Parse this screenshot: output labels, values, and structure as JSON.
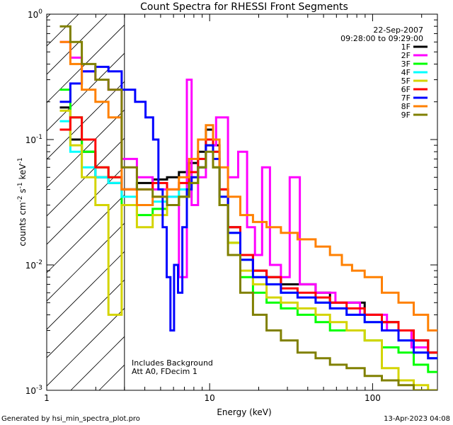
{
  "chart_data": {
    "type": "line",
    "title": "Count Spectra for RHESSI Front Segments",
    "xlabel": "Energy (keV)",
    "ylabel": "counts cm^-2 s^-1 keV^-1",
    "ylabel_parts": {
      "a": "counts cm",
      "b": "-2",
      "c": " s",
      "d": "-1",
      "e": " keV",
      "f": "-1"
    },
    "x_scale": "log",
    "y_scale": "log",
    "xlim": [
      1,
      250
    ],
    "ylim": [
      0.001,
      1
    ],
    "x_ticks": [
      {
        "value": 1,
        "label": "1"
      },
      {
        "value": 10,
        "label": "10"
      },
      {
        "value": 100,
        "label": "100"
      }
    ],
    "y_ticks": [
      {
        "value": 1,
        "base": "10",
        "exp": "0"
      },
      {
        "value": 0.1,
        "base": "10",
        "exp": "-1"
      },
      {
        "value": 0.01,
        "base": "10",
        "exp": "-2"
      },
      {
        "value": 0.001,
        "base": "10",
        "exp": "-3"
      }
    ],
    "date": "22-Sep-2007",
    "time_range": "09:28:00 to 09:29:00",
    "annotation_lines": [
      "Includes Background",
      "Att A0, FDecim 1"
    ],
    "hatched_region": {
      "x_start": 1,
      "x_end": 3
    },
    "series": [
      {
        "name": "1F",
        "color": "#000000",
        "points": [
          [
            1.3,
            0.18
          ],
          [
            1.5,
            0.1
          ],
          [
            1.8,
            0.08
          ],
          [
            2.2,
            0.05
          ],
          [
            2.6,
            0.045
          ],
          [
            3.2,
            0.04
          ],
          [
            4.0,
            0.045
          ],
          [
            5.0,
            0.048
          ],
          [
            6.0,
            0.05
          ],
          [
            7.0,
            0.055
          ],
          [
            8.0,
            0.065
          ],
          [
            9.0,
            0.08
          ],
          [
            10.0,
            0.12
          ],
          [
            11.0,
            0.09
          ],
          [
            12.0,
            0.04
          ],
          [
            14.0,
            0.02
          ],
          [
            17.0,
            0.012
          ],
          [
            20.0,
            0.009
          ],
          [
            25.0,
            0.008
          ],
          [
            30.0,
            0.007
          ],
          [
            40.0,
            0.007
          ],
          [
            50.0,
            0.006
          ],
          [
            60.0,
            0.005
          ],
          [
            80.0,
            0.005
          ],
          [
            100.0,
            0.004
          ],
          [
            130.0,
            0.0035
          ],
          [
            160.0,
            0.003
          ],
          [
            200.0,
            0.0025
          ],
          [
            240.0,
            0.002
          ]
        ]
      },
      {
        "name": "2F",
        "color": "#ff00ff",
        "points": [
          [
            1.3,
            0.6
          ],
          [
            1.5,
            0.45
          ],
          [
            1.8,
            0.35
          ],
          [
            2.2,
            0.3
          ],
          [
            2.6,
            0.25
          ],
          [
            3.2,
            0.07
          ],
          [
            4.0,
            0.05
          ],
          [
            5.0,
            0.04
          ],
          [
            6.0,
            0.035
          ],
          [
            7.0,
            0.008
          ],
          [
            7.5,
            0.3
          ],
          [
            8.0,
            0.03
          ],
          [
            9.0,
            0.05
          ],
          [
            10.0,
            0.09
          ],
          [
            12.0,
            0.15
          ],
          [
            14.0,
            0.05
          ],
          [
            16.0,
            0.08
          ],
          [
            18.0,
            0.02
          ],
          [
            20.0,
            0.012
          ],
          [
            22.0,
            0.06
          ],
          [
            25.0,
            0.01
          ],
          [
            30.0,
            0.008
          ],
          [
            32.0,
            0.05
          ],
          [
            40.0,
            0.007
          ],
          [
            50.0,
            0.006
          ],
          [
            70.0,
            0.005
          ],
          [
            100.0,
            0.004
          ],
          [
            150.0,
            0.003
          ],
          [
            200.0,
            0.0022
          ],
          [
            240.0,
            0.0018
          ]
        ]
      },
      {
        "name": "3F",
        "color": "#00ff00",
        "points": [
          [
            1.3,
            0.25
          ],
          [
            1.5,
            0.15
          ],
          [
            1.8,
            0.08
          ],
          [
            2.2,
            0.06
          ],
          [
            2.6,
            0.05
          ],
          [
            3.2,
            0.03
          ],
          [
            4.0,
            0.025
          ],
          [
            5.0,
            0.028
          ],
          [
            6.0,
            0.03
          ],
          [
            7.0,
            0.035
          ],
          [
            8.0,
            0.045
          ],
          [
            9.0,
            0.06
          ],
          [
            10.0,
            0.09
          ],
          [
            11.0,
            0.06
          ],
          [
            12.0,
            0.03
          ],
          [
            14.0,
            0.015
          ],
          [
            17.0,
            0.008
          ],
          [
            20.0,
            0.006
          ],
          [
            25.0,
            0.005
          ],
          [
            30.0,
            0.0045
          ],
          [
            40.0,
            0.004
          ],
          [
            50.0,
            0.0035
          ],
          [
            60.0,
            0.003
          ],
          [
            80.0,
            0.003
          ],
          [
            100.0,
            0.0025
          ],
          [
            130.0,
            0.0022
          ],
          [
            160.0,
            0.002
          ],
          [
            200.0,
            0.0016
          ],
          [
            240.0,
            0.0014
          ]
        ]
      },
      {
        "name": "4F",
        "color": "#00ffff",
        "points": [
          [
            1.3,
            0.14
          ],
          [
            1.5,
            0.08
          ],
          [
            1.8,
            0.06
          ],
          [
            2.2,
            0.05
          ],
          [
            2.6,
            0.045
          ],
          [
            3.2,
            0.035
          ],
          [
            4.0,
            0.03
          ],
          [
            5.0,
            0.032
          ],
          [
            6.0,
            0.035
          ],
          [
            7.0,
            0.04
          ],
          [
            8.0,
            0.05
          ],
          [
            9.0,
            0.07
          ],
          [
            10.0,
            0.1
          ],
          [
            11.0,
            0.08
          ],
          [
            12.0,
            0.035
          ],
          [
            14.0,
            0.018
          ],
          [
            17.0,
            0.011
          ],
          [
            20.0,
            0.008
          ],
          [
            25.0,
            0.007
          ],
          [
            30.0,
            0.006
          ],
          [
            40.0,
            0.0055
          ],
          [
            50.0,
            0.005
          ],
          [
            60.0,
            0.0045
          ],
          [
            80.0,
            0.004
          ],
          [
            100.0,
            0.0035
          ],
          [
            130.0,
            0.003
          ],
          [
            160.0,
            0.0025
          ],
          [
            200.0,
            0.002
          ],
          [
            240.0,
            0.0018
          ]
        ]
      },
      {
        "name": "5F",
        "color": "#d4d400",
        "points": [
          [
            1.3,
            0.17
          ],
          [
            1.5,
            0.09
          ],
          [
            1.8,
            0.05
          ],
          [
            2.2,
            0.03
          ],
          [
            2.6,
            0.004
          ],
          [
            3.2,
            0.03
          ],
          [
            4.0,
            0.02
          ],
          [
            5.0,
            0.025
          ],
          [
            6.0,
            0.03
          ],
          [
            7.0,
            0.035
          ],
          [
            8.0,
            0.045
          ],
          [
            9.0,
            0.06
          ],
          [
            10.0,
            0.09
          ],
          [
            11.0,
            0.06
          ],
          [
            12.0,
            0.03
          ],
          [
            14.0,
            0.015
          ],
          [
            17.0,
            0.009
          ],
          [
            20.0,
            0.007
          ],
          [
            25.0,
            0.0055
          ],
          [
            30.0,
            0.005
          ],
          [
            40.0,
            0.0045
          ],
          [
            50.0,
            0.004
          ],
          [
            60.0,
            0.0035
          ],
          [
            80.0,
            0.003
          ],
          [
            100.0,
            0.0025
          ],
          [
            130.0,
            0.0015
          ],
          [
            160.0,
            0.0012
          ],
          [
            200.0,
            0.0011
          ],
          [
            240.0,
            0.001
          ]
        ]
      },
      {
        "name": "6F",
        "color": "#ff0000",
        "points": [
          [
            1.3,
            0.12
          ],
          [
            1.5,
            0.15
          ],
          [
            1.8,
            0.1
          ],
          [
            2.2,
            0.06
          ],
          [
            2.6,
            0.05
          ],
          [
            3.2,
            0.04
          ],
          [
            4.0,
            0.04
          ],
          [
            5.0,
            0.045
          ],
          [
            6.0,
            0.04
          ],
          [
            7.0,
            0.045
          ],
          [
            8.0,
            0.055
          ],
          [
            9.0,
            0.07
          ],
          [
            10.0,
            0.1
          ],
          [
            11.0,
            0.08
          ],
          [
            12.0,
            0.04
          ],
          [
            14.0,
            0.02
          ],
          [
            17.0,
            0.012
          ],
          [
            20.0,
            0.009
          ],
          [
            25.0,
            0.008
          ],
          [
            30.0,
            0.0065
          ],
          [
            40.0,
            0.006
          ],
          [
            50.0,
            0.0055
          ],
          [
            60.0,
            0.005
          ],
          [
            80.0,
            0.0045
          ],
          [
            100.0,
            0.004
          ],
          [
            130.0,
            0.0035
          ],
          [
            160.0,
            0.003
          ],
          [
            200.0,
            0.0025
          ],
          [
            240.0,
            0.002
          ]
        ]
      },
      {
        "name": "7F",
        "color": "#0000ff",
        "points": [
          [
            1.3,
            0.2
          ],
          [
            1.5,
            0.28
          ],
          [
            1.8,
            0.35
          ],
          [
            2.2,
            0.38
          ],
          [
            2.6,
            0.35
          ],
          [
            3.2,
            0.25
          ],
          [
            3.8,
            0.2
          ],
          [
            4.3,
            0.15
          ],
          [
            4.7,
            0.1
          ],
          [
            5.0,
            0.04
          ],
          [
            5.3,
            0.02
          ],
          [
            5.6,
            0.008
          ],
          [
            5.9,
            0.003
          ],
          [
            6.2,
            0.01
          ],
          [
            6.6,
            0.006
          ],
          [
            7.0,
            0.02
          ],
          [
            7.5,
            0.04
          ],
          [
            8.0,
            0.05
          ],
          [
            9.0,
            0.06
          ],
          [
            10.0,
            0.09
          ],
          [
            11.0,
            0.07
          ],
          [
            12.0,
            0.035
          ],
          [
            14.0,
            0.018
          ],
          [
            17.0,
            0.011
          ],
          [
            20.0,
            0.008
          ],
          [
            25.0,
            0.007
          ],
          [
            30.0,
            0.006
          ],
          [
            40.0,
            0.0055
          ],
          [
            50.0,
            0.005
          ],
          [
            60.0,
            0.0045
          ],
          [
            80.0,
            0.004
          ],
          [
            100.0,
            0.0035
          ],
          [
            130.0,
            0.003
          ],
          [
            160.0,
            0.0025
          ],
          [
            200.0,
            0.002
          ],
          [
            240.0,
            0.0018
          ]
        ]
      },
      {
        "name": "8F",
        "color": "#ff8000",
        "points": [
          [
            1.3,
            0.6
          ],
          [
            1.5,
            0.4
          ],
          [
            1.8,
            0.25
          ],
          [
            2.2,
            0.2
          ],
          [
            2.6,
            0.15
          ],
          [
            3.2,
            0.04
          ],
          [
            4.0,
            0.03
          ],
          [
            5.0,
            0.035
          ],
          [
            6.0,
            0.04
          ],
          [
            7.0,
            0.05
          ],
          [
            8.0,
            0.07
          ],
          [
            9.0,
            0.1
          ],
          [
            10.0,
            0.13
          ],
          [
            11.0,
            0.1
          ],
          [
            12.0,
            0.06
          ],
          [
            14.0,
            0.035
          ],
          [
            17.0,
            0.025
          ],
          [
            20.0,
            0.022
          ],
          [
            25.0,
            0.02
          ],
          [
            30.0,
            0.018
          ],
          [
            40.0,
            0.016
          ],
          [
            50.0,
            0.014
          ],
          [
            60.0,
            0.012
          ],
          [
            70.0,
            0.01
          ],
          [
            80.0,
            0.009
          ],
          [
            100.0,
            0.008
          ],
          [
            130.0,
            0.006
          ],
          [
            160.0,
            0.005
          ],
          [
            200.0,
            0.004
          ],
          [
            240.0,
            0.003
          ]
        ]
      },
      {
        "name": "9F",
        "color": "#808000",
        "points": [
          [
            1.3,
            0.8
          ],
          [
            1.5,
            0.6
          ],
          [
            1.8,
            0.4
          ],
          [
            2.2,
            0.3
          ],
          [
            2.6,
            0.25
          ],
          [
            3.2,
            0.06
          ],
          [
            4.0,
            0.04
          ],
          [
            5.0,
            0.035
          ],
          [
            6.0,
            0.03
          ],
          [
            7.0,
            0.035
          ],
          [
            8.0,
            0.045
          ],
          [
            9.0,
            0.06
          ],
          [
            10.0,
            0.08
          ],
          [
            11.0,
            0.06
          ],
          [
            12.0,
            0.03
          ],
          [
            14.0,
            0.012
          ],
          [
            17.0,
            0.006
          ],
          [
            20.0,
            0.004
          ],
          [
            25.0,
            0.003
          ],
          [
            30.0,
            0.0025
          ],
          [
            40.0,
            0.002
          ],
          [
            50.0,
            0.0018
          ],
          [
            60.0,
            0.0016
          ],
          [
            80.0,
            0.0015
          ],
          [
            100.0,
            0.0013
          ],
          [
            130.0,
            0.0012
          ],
          [
            160.0,
            0.0011
          ],
          [
            200.0,
            0.001
          ],
          [
            240.0,
            0.001
          ]
        ]
      }
    ]
  },
  "footer": {
    "left": "Generated by hsi_min_spectra_plot.pro",
    "right": "13-Apr-2023 04:08"
  }
}
